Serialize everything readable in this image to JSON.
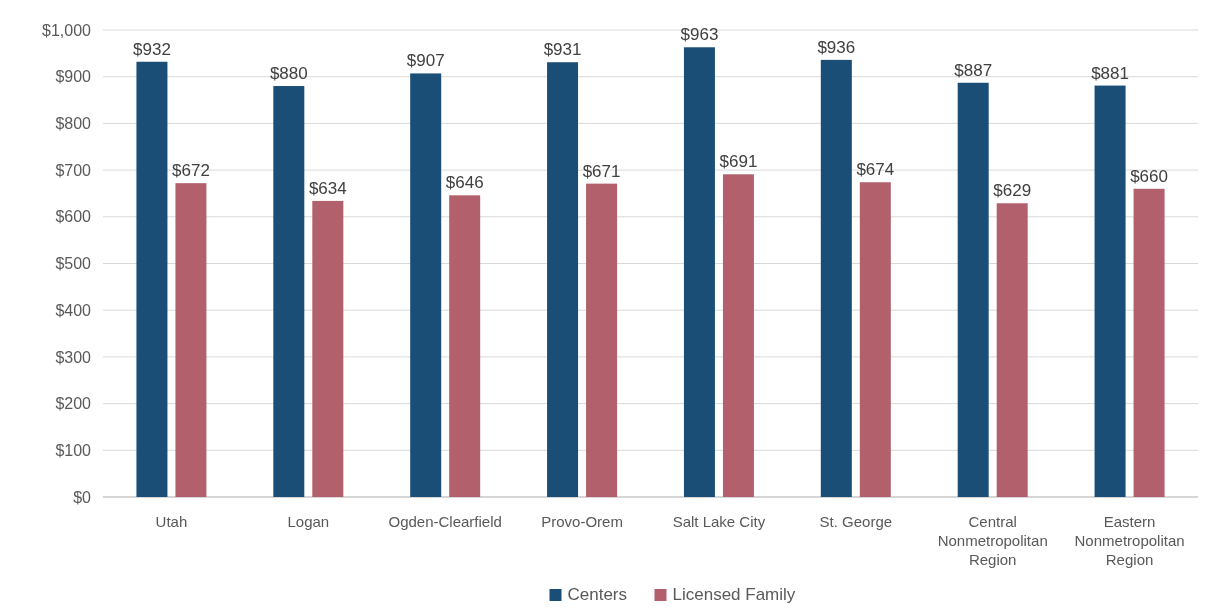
{
  "chart_data": {
    "type": "bar",
    "categories": [
      "Utah",
      "Logan",
      "Ogden-Clearfield",
      "Provo-Orem",
      "Salt Lake City",
      "St. George",
      "Central Nonmetropolitan Region",
      "Eastern Nonmetropolitan Region"
    ],
    "series": [
      {
        "name": "Centers",
        "color": "#1a4e77",
        "values": [
          932,
          880,
          907,
          931,
          963,
          936,
          887,
          881
        ],
        "value_labels": [
          "$932",
          "$880",
          "$907",
          "$931",
          "$963",
          "$936",
          "$887",
          "$881"
        ]
      },
      {
        "name": "Licensed Family",
        "color": "#b3606d",
        "values": [
          672,
          634,
          646,
          671,
          691,
          674,
          629,
          660
        ],
        "value_labels": [
          "$672",
          "$634",
          "$646",
          "$671",
          "$691",
          "$674",
          "$629",
          "$660"
        ]
      }
    ],
    "ylim": [
      0,
      1000
    ],
    "yticks": [
      {
        "value": 0,
        "label": "$0"
      },
      {
        "value": 100,
        "label": "$100"
      },
      {
        "value": 200,
        "label": "$200"
      },
      {
        "value": 300,
        "label": "$300"
      },
      {
        "value": 400,
        "label": "$400"
      },
      {
        "value": 500,
        "label": "$500"
      },
      {
        "value": 600,
        "label": "$600"
      },
      {
        "value": 700,
        "label": "$700"
      },
      {
        "value": 800,
        "label": "$800"
      },
      {
        "value": 900,
        "label": "$900"
      },
      {
        "value": 1000,
        "label": "$1,000"
      }
    ],
    "grid": "y",
    "legend": "bottom"
  }
}
